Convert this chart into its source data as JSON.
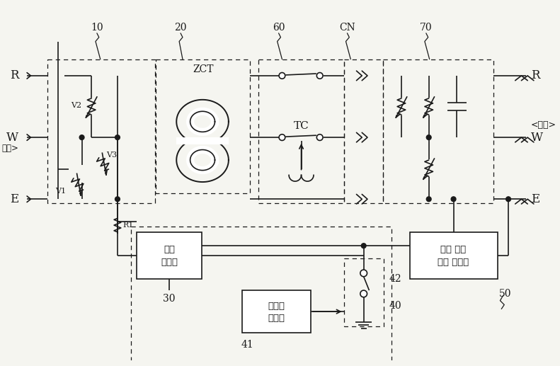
{
  "background_color": "#f5f5f0",
  "line_color": "#1a1a1a",
  "fig_width": 7.91,
  "fig_height": 5.17,
  "dpi": 100,
  "labels": {
    "R_in": "R",
    "W_in": "W",
    "input": "입력>",
    "E_in": "E",
    "R_out": "R",
    "W_out": "W",
    "E_out": "E",
    "load": "<부하>",
    "ZCT": "ZCT",
    "TC": "TC",
    "box10": "10",
    "box20": "20",
    "box60": "60",
    "boxCN": "CN",
    "box70": "70",
    "delay_line1": "지연",
    "delay_line2": "회로부",
    "leakage_line1": "누설 전류",
    "leakage_line2": "차단 제어부",
    "charge_line1": "충방전",
    "charge_line2": "회로부",
    "num30": "30",
    "num40": "40",
    "num41": "41",
    "num42": "42",
    "num50": "50",
    "V1": "V1",
    "V2": "V2",
    "V3": "V3",
    "R1": "R1"
  }
}
